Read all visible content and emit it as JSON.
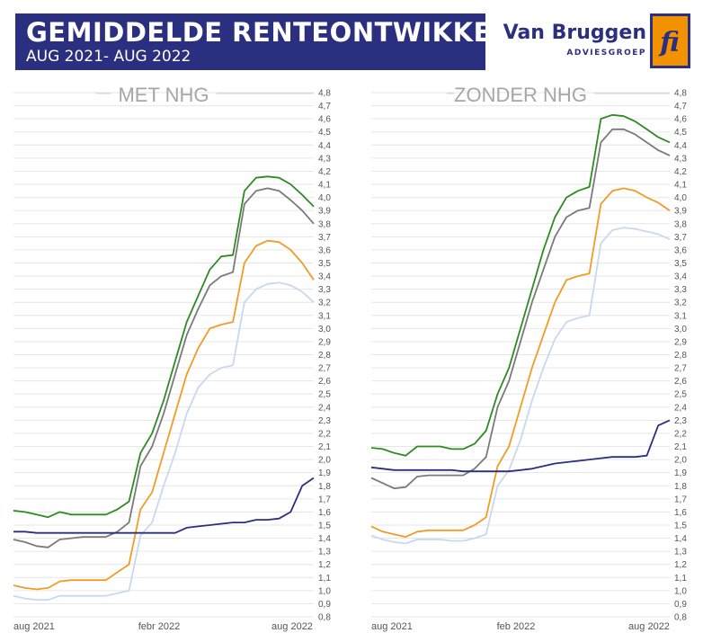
{
  "header": {
    "title": "GEMIDDELDE RENTEONTWIKKELING",
    "subtitle": "AUG 2021- AUG 2022"
  },
  "brand": {
    "name": "Van Bruggen",
    "sub": "ADVIESGROEP",
    "logo_text": "fi",
    "colors": {
      "navy": "#2b2f7f",
      "orange": "#f39200"
    }
  },
  "colors": {
    "green": "#2e8b22",
    "gray": "#7a7a7a",
    "orange": "#f29b25",
    "lightblue": "#c8d8ee",
    "navy": "#2b2f7f",
    "grid": "#e6e6e6",
    "axis_text": "#555555",
    "panel_title": "#a6a6a6"
  },
  "chart_data": [
    {
      "type": "line",
      "title": "MET NHG",
      "ylim": [
        0.8,
        4.8
      ],
      "y_ticks": [
        "4,8",
        "4,7",
        "4,6",
        "4,5",
        "4,4",
        "4,3",
        "4,2",
        "4,1",
        "4,0",
        "3,9",
        "3,8",
        "3,7",
        "3,6",
        "3,5",
        "3,4",
        "3,3",
        "3,2",
        "3,1",
        "3,0",
        "2,9",
        "2,8",
        "2,7",
        "2,6",
        "2,5",
        "2,4",
        "2,3",
        "2,2",
        "2,1",
        "2,0",
        "1,9",
        "1,8",
        "1,7",
        "1,6",
        "1,5",
        "1,4",
        "1,3",
        "1,2",
        "1,1",
        "1,0",
        "0,9",
        "0,8"
      ],
      "x_labels": [
        "aug 2021",
        "febr 2022",
        "aug 2022"
      ],
      "grid": true,
      "x": [
        0,
        2,
        4,
        6,
        8,
        10,
        12,
        14,
        16,
        18,
        20,
        22,
        24,
        26,
        28,
        30,
        32,
        34,
        36,
        38,
        40,
        42,
        44,
        46,
        48,
        50,
        52
      ],
      "series": [
        {
          "color": "green",
          "values": [
            1.61,
            1.6,
            1.58,
            1.56,
            1.6,
            1.58,
            1.58,
            1.58,
            1.58,
            1.62,
            1.68,
            2.05,
            2.2,
            2.45,
            2.75,
            3.05,
            3.25,
            3.45,
            3.55,
            3.56,
            4.05,
            4.15,
            4.16,
            4.15,
            4.1,
            4.02,
            3.93
          ]
        },
        {
          "color": "gray",
          "values": [
            1.39,
            1.37,
            1.34,
            1.33,
            1.39,
            1.4,
            1.41,
            1.41,
            1.41,
            1.45,
            1.52,
            1.95,
            2.1,
            2.35,
            2.65,
            2.95,
            3.15,
            3.33,
            3.4,
            3.43,
            3.95,
            4.05,
            4.07,
            4.05,
            3.98,
            3.9,
            3.8
          ]
        },
        {
          "color": "orange",
          "values": [
            1.04,
            1.02,
            1.01,
            1.02,
            1.07,
            1.08,
            1.08,
            1.08,
            1.08,
            1.14,
            1.2,
            1.62,
            1.75,
            2.05,
            2.35,
            2.65,
            2.85,
            3.0,
            3.03,
            3.05,
            3.5,
            3.63,
            3.67,
            3.66,
            3.6,
            3.5,
            3.37
          ]
        },
        {
          "color": "lightblue",
          "values": [
            0.96,
            0.94,
            0.93,
            0.93,
            0.96,
            0.96,
            0.96,
            0.96,
            0.96,
            0.98,
            1.0,
            1.42,
            1.52,
            1.8,
            2.05,
            2.35,
            2.55,
            2.65,
            2.7,
            2.72,
            3.2,
            3.3,
            3.34,
            3.35,
            3.33,
            3.28,
            3.2
          ]
        },
        {
          "color": "navy",
          "values": [
            1.45,
            1.45,
            1.44,
            1.44,
            1.44,
            1.44,
            1.44,
            1.44,
            1.44,
            1.44,
            1.44,
            1.44,
            1.44,
            1.44,
            1.44,
            1.48,
            1.49,
            1.5,
            1.51,
            1.52,
            1.52,
            1.54,
            1.54,
            1.55,
            1.6,
            1.8,
            1.86
          ]
        }
      ]
    },
    {
      "type": "line",
      "title": "ZONDER NHG",
      "ylim": [
        0.8,
        4.8
      ],
      "y_ticks": [
        "4,8",
        "4,7",
        "4,6",
        "4,5",
        "4,4",
        "4,3",
        "4,2",
        "4,1",
        "4,0",
        "3,9",
        "3,8",
        "3,7",
        "3,6",
        "3,5",
        "3,4",
        "3,3",
        "3,2",
        "3,1",
        "3,0",
        "2,9",
        "2,8",
        "2,7",
        "2,6",
        "2,5",
        "2,4",
        "2,3",
        "2,2",
        "2,1",
        "2,0",
        "1,9",
        "1,8",
        "1,7",
        "1,6",
        "1,5",
        "1,4",
        "1,3",
        "1,2",
        "1,1",
        "1,0",
        "0,9",
        "0,8"
      ],
      "x_labels": [
        "aug 2021",
        "feb 2022",
        "aug 2022"
      ],
      "grid": true,
      "x": [
        0,
        2,
        4,
        6,
        8,
        10,
        12,
        14,
        16,
        18,
        20,
        22,
        24,
        26,
        28,
        30,
        32,
        34,
        36,
        38,
        40,
        42,
        44,
        46,
        48,
        50,
        52
      ],
      "series": [
        {
          "color": "green",
          "values": [
            2.09,
            2.08,
            2.05,
            2.03,
            2.1,
            2.1,
            2.1,
            2.08,
            2.08,
            2.12,
            2.22,
            2.5,
            2.7,
            3.0,
            3.3,
            3.6,
            3.85,
            4.0,
            4.05,
            4.08,
            4.6,
            4.63,
            4.62,
            4.58,
            4.52,
            4.46,
            4.42
          ]
        },
        {
          "color": "gray",
          "values": [
            1.86,
            1.82,
            1.78,
            1.79,
            1.87,
            1.88,
            1.88,
            1.88,
            1.88,
            1.93,
            2.02,
            2.4,
            2.6,
            2.9,
            3.2,
            3.45,
            3.7,
            3.85,
            3.9,
            3.92,
            4.42,
            4.52,
            4.52,
            4.48,
            4.42,
            4.36,
            4.32
          ]
        },
        {
          "color": "orange",
          "values": [
            1.49,
            1.45,
            1.43,
            1.41,
            1.45,
            1.46,
            1.46,
            1.46,
            1.46,
            1.5,
            1.56,
            1.95,
            2.1,
            2.4,
            2.7,
            2.95,
            3.2,
            3.37,
            3.4,
            3.42,
            3.95,
            4.05,
            4.07,
            4.05,
            4.0,
            3.96,
            3.9
          ]
        },
        {
          "color": "lightblue",
          "values": [
            1.42,
            1.39,
            1.37,
            1.36,
            1.39,
            1.39,
            1.39,
            1.38,
            1.38,
            1.4,
            1.43,
            1.8,
            1.92,
            2.15,
            2.45,
            2.7,
            2.92,
            3.05,
            3.08,
            3.1,
            3.65,
            3.75,
            3.77,
            3.76,
            3.74,
            3.72,
            3.68
          ]
        },
        {
          "color": "navy",
          "values": [
            1.94,
            1.93,
            1.92,
            1.92,
            1.92,
            1.92,
            1.92,
            1.92,
            1.91,
            1.91,
            1.91,
            1.91,
            1.91,
            1.92,
            1.93,
            1.95,
            1.97,
            1.98,
            1.99,
            2.0,
            2.01,
            2.02,
            2.02,
            2.02,
            2.03,
            2.26,
            2.3
          ]
        }
      ]
    }
  ]
}
